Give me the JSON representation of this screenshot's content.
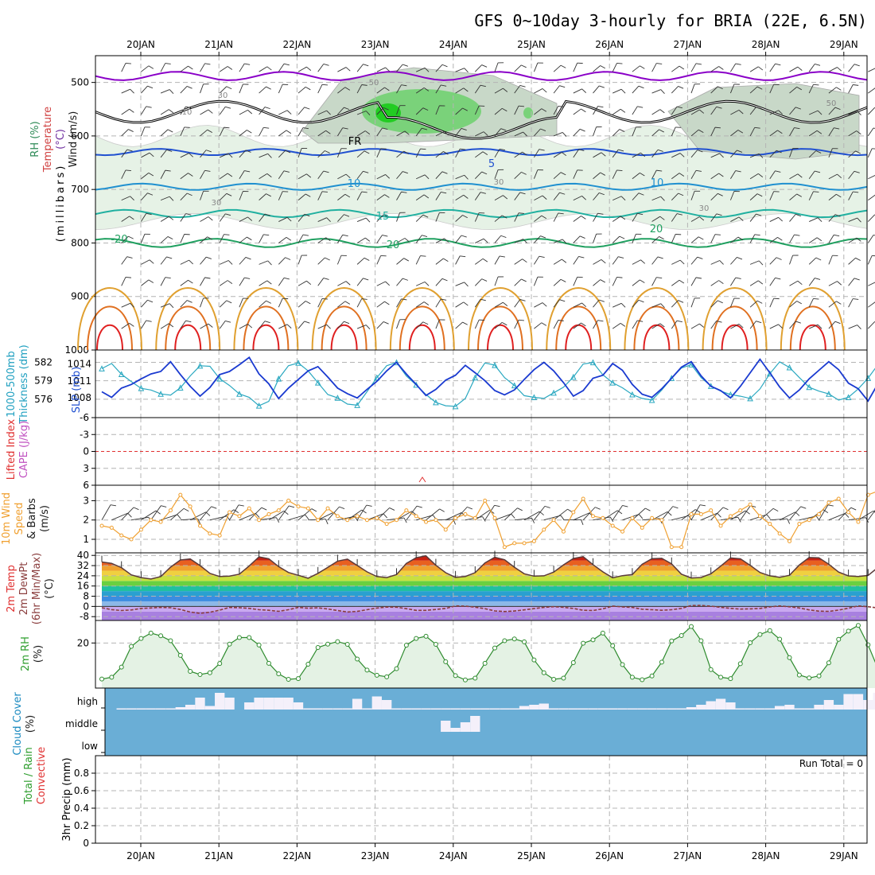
{
  "title": "GFS 0~10day 3-hourly for BRIA (22E, 6.5N)",
  "dates": [
    "20JAN",
    "21JAN",
    "22JAN",
    "23JAN",
    "24JAN",
    "25JAN",
    "26JAN",
    "27JAN",
    "28JAN",
    "29JAN"
  ],
  "colors": {
    "grid": "#b4b4b4",
    "rh_fill": "#e6f2e6",
    "dew": "#8a3d3d",
    "purple": "#8a00c8",
    "lifted": "#e03030",
    "cape": "#c050c0",
    "speed": "#f0a030",
    "cloud_bg": "#6aaed6",
    "cloud_fill": "#f4f0fa"
  },
  "chart_data": [
    {
      "name_hint": "upper-air",
      "type": "line",
      "ylabel_parts": [
        {
          "text": "RH (%)",
          "color": "#2e8b57"
        },
        {
          "text": "Temperature",
          "color": "#d04040"
        },
        {
          "text": "(°C)",
          "color": "#7030a0"
        },
        {
          "text": "Wind (m/s)",
          "color": "#1a1a1a"
        }
      ],
      "ylabel2": "(millibars)",
      "yticks": [
        500,
        600,
        700,
        800,
        900,
        1000
      ],
      "ylim": [
        450,
        1000
      ],
      "fr_label": "FR",
      "contour_labels": [
        {
          "text": "5",
          "color": "#2050d0"
        },
        {
          "text": "10",
          "color": "#2090d0"
        },
        {
          "text": "10",
          "color": "#2090d0"
        },
        {
          "text": "15",
          "color": "#20b0a0"
        },
        {
          "text": "20",
          "color": "#20a060"
        },
        {
          "text": "20",
          "color": "#20a060"
        },
        {
          "text": "-20",
          "color": "#20a060"
        },
        {
          "text": "50",
          "color": "#999999"
        },
        {
          "text": "50",
          "color": "#999999"
        },
        {
          "text": "30",
          "color": "#999999"
        },
        {
          "text": "10",
          "color": "#999999"
        },
        {
          "text": "30",
          "color": "#999999"
        },
        {
          "text": "30",
          "color": "#999999"
        },
        {
          "text": "30",
          "color": "#999999"
        }
      ]
    },
    {
      "name_hint": "thickness-slp",
      "type": "line",
      "ylabel_parts": [
        {
          "text": "1000-500mb",
          "color": "#20a0c0"
        },
        {
          "text": "Thickness (dm)",
          "color": "#20a0c0"
        }
      ],
      "ylabel_right": "SLP (mb)",
      "yticks_left": [
        576,
        579,
        582
      ],
      "yticks_right": [
        1008,
        1011,
        1014
      ],
      "series": [
        {
          "name": "1000-500mb Thickness",
          "values": [
            577.2,
            576.3,
            577.8,
            578.4,
            579.3,
            580.1,
            580.5,
            582.1,
            580.0,
            578.1,
            576.5,
            577.9,
            580.0,
            580.5,
            581.6,
            582.8,
            580.1,
            578.5,
            576.1,
            577.8,
            579.2,
            580.6,
            581.3,
            579.6,
            577.8,
            576.9,
            576.2,
            577.6,
            578.9,
            580.6,
            582.0,
            580.1,
            578.4,
            576.6,
            577.6,
            579.1,
            579.9,
            581.5,
            580.3,
            579.0,
            577.4,
            576.7,
            577.5,
            579.2,
            580.8,
            582.0,
            580.6,
            578.7,
            576.5,
            577.4,
            579.4,
            579.9,
            581.8,
            580.7,
            578.4,
            576.8,
            576.3,
            577.7,
            579.4,
            581.2,
            582.1,
            579.8,
            578.1,
            577.4,
            576.2,
            578.1,
            580.3,
            582.5,
            580.3,
            578.0,
            576.2,
            577.5,
            579.3,
            580.7,
            582.1,
            580.8,
            578.6,
            577.7,
            575.7,
            578.5,
            579.5,
            580.8
          ]
        },
        {
          "name": "SLP",
          "values": [
            1013.2,
            1014.1,
            1012.2,
            1010.9,
            1009.7,
            1009.4,
            1008.7,
            1008.5,
            1009.8,
            1011.9,
            1013.7,
            1013.6,
            1011.4,
            1010.2,
            1008.7,
            1008.1,
            1006.6,
            1007.4,
            1011.4,
            1013.7,
            1014.2,
            1012.8,
            1010.7,
            1008.6,
            1008.0,
            1006.9,
            1006.7,
            1009.1,
            1011.6,
            1013.7,
            1014.3,
            1011.9,
            1010.3,
            1008.6,
            1007.2,
            1006.6,
            1006.5,
            1007.9,
            1011.6,
            1014.2,
            1013.8,
            1011.6,
            1010.2,
            1008.4,
            1008.1,
            1007.9,
            1008.9,
            1009.9,
            1011.7,
            1014.0,
            1014.3,
            1012.1,
            1010.7,
            1009.8,
            1008.6,
            1007.9,
            1007.6,
            1009.4,
            1011.5,
            1013.3,
            1013.9,
            1011.6,
            1010.1,
            1009.2,
            1008.6,
            1008.3,
            1007.9,
            1009.6,
            1012.3,
            1014.4,
            1013.4,
            1011.6,
            1009.9,
            1009.2,
            1008.7,
            1007.6,
            1008.1,
            1009.6,
            1011.5,
            1013.9,
            1013.2,
            1011.4
          ]
        }
      ]
    },
    {
      "name_hint": "lifted-cape",
      "type": "line",
      "ylabel_parts": [
        {
          "text": "Lifted Index",
          "color": "#e03030"
        },
        {
          "text": "CAPE (J/kg)",
          "color": "#c050c0"
        }
      ],
      "yticks": [
        -6,
        -3,
        0,
        3,
        6
      ],
      "ylim": [
        -6,
        6
      ]
    },
    {
      "name_hint": "wind10m",
      "type": "line",
      "ylabel_parts": [
        {
          "text": "10m Wind",
          "color": "#f0a030"
        },
        {
          "text": "Speed",
          "color": "#f0a030"
        },
        {
          "text": "& Barbs",
          "color": "#1a1a1a"
        },
        {
          "text": "(m/s)",
          "color": "#1a1a1a"
        }
      ],
      "yticks": [
        1,
        2,
        3
      ],
      "ylim": [
        0.3,
        3.8
      ],
      "series": [
        {
          "name": "10m Wind Speed",
          "values": [
            1.7,
            1.6,
            1.2,
            1.0,
            1.5,
            2.0,
            1.9,
            2.5,
            3.3,
            2.7,
            1.7,
            1.3,
            1.2,
            2.4,
            2.2,
            2.6,
            2.0,
            2.3,
            2.5,
            3.0,
            2.7,
            2.6,
            2.0,
            2.6,
            2.2,
            2.0,
            2.2,
            2.0,
            2.1,
            1.8,
            2.0,
            2.5,
            2.2,
            1.9,
            2.0,
            1.5,
            2.1,
            2.3,
            2.1,
            3.0,
            2.1,
            0.6,
            0.8,
            0.8,
            0.9,
            1.5,
            2.0,
            1.4,
            2.4,
            3.1,
            2.2,
            2.1,
            1.7,
            1.4,
            2.1,
            1.6,
            2.1,
            2.0,
            0.6,
            0.6,
            2.3,
            2.3,
            2.5,
            1.7,
            2.2,
            2.5,
            2.8,
            2.2,
            1.8,
            1.3,
            0.9,
            1.8,
            2.0,
            2.3,
            2.9,
            3.1,
            2.4,
            1.9,
            3.3,
            3.5,
            1.9,
            2.4
          ]
        }
      ]
    },
    {
      "name_hint": "temp-dewpt",
      "type": "area",
      "ylabel_parts": [
        {
          "text": "2m Temp",
          "color": "#e03030"
        },
        {
          "text": "2m DewPt",
          "color": "#8a3d3d"
        },
        {
          "text": "(6hr Min/Max)",
          "color": "#8a3d3d"
        },
        {
          "text": "(°C)",
          "color": "#1a1a1a"
        }
      ],
      "yticks": [
        -8,
        0,
        8,
        16,
        24,
        32,
        40
      ],
      "ylim": [
        -11,
        42
      ],
      "series": [
        {
          "name": "2m Temp",
          "values": [
            34.8,
            33.8,
            30.4,
            24.7,
            22.6,
            21.5,
            23.4,
            30.8,
            36.4,
            37.2,
            32.0,
            25.9,
            23.4,
            23.8,
            25.3,
            31.8,
            38.8,
            37.4,
            31.2,
            26.6,
            24.4,
            22.1,
            25.9,
            30.6,
            35.5,
            37.1,
            32.1,
            27.1,
            23.4,
            22.6,
            24.9,
            33.7,
            38.2,
            39.6,
            32.3,
            26.4,
            22.8,
            23.5,
            26.5,
            34.1,
            38.6,
            36.6,
            30.7,
            25.6,
            23.7,
            24.0,
            26.9,
            32.6,
            37.6,
            39.0,
            32.8,
            27.1,
            22.5,
            24.1,
            25.0,
            33.1,
            37.4,
            37.7,
            33.4,
            25.3,
            22.3,
            22.7,
            25.6,
            31.6,
            38.0,
            37.3,
            32.2,
            26.6,
            24.0,
            22.8,
            24.4,
            32.5,
            38.3,
            38.1,
            33.1,
            26.9,
            23.9,
            23.4,
            24.3,
            30.5,
            36.5,
            37.4
          ]
        },
        {
          "name": "2m DewPt",
          "values": [
            -1.0,
            -2.5,
            -3.2,
            -2.8,
            -1.6,
            -1.2,
            -0.8,
            -1.0,
            -2.4,
            -4.4,
            -5.4,
            -4.6,
            -2.9,
            -0.8,
            -1.0,
            -1.5,
            -2.6,
            -3.0,
            -3.8,
            -2.6,
            -0.8,
            -1.4,
            -1.1,
            -2.0,
            -3.2,
            -4.4,
            -3.9,
            -2.6,
            -1.3,
            -0.5,
            -0.6,
            -1.8,
            -3.1,
            -3.1,
            -2.4,
            -1.6,
            0.4,
            0.2,
            -0.6,
            -1.8,
            -3.5,
            -4.0,
            -3.6,
            -2.7,
            -1.7,
            -0.8,
            -0.2,
            -0.7,
            -1.6,
            -3.0,
            -3.2,
            -1.9,
            0.3,
            -0.4,
            -0.8,
            -2.2,
            -2.6,
            -3.0,
            -2.6,
            -1.6,
            0.7,
            0.8,
            0.2,
            -0.7,
            -1.5,
            -2.1,
            -1.9,
            -1.6,
            -0.4,
            0.4,
            -0.3,
            -1.2,
            -2.7,
            -3.7,
            -3.9,
            -2.9,
            -1.4,
            0.4,
            -0.2,
            -1.2,
            -2.0,
            -3.3
          ]
        }
      ]
    },
    {
      "name_hint": "rh2m",
      "type": "area",
      "ylabel_parts": [
        {
          "text": "2m RH",
          "color": "#2e9e2e"
        },
        {
          "text": "(%)",
          "color": "#1a1a1a"
        }
      ],
      "yticks": [
        20
      ],
      "ylim": [
        0,
        30
      ],
      "series": [
        {
          "name": "2m RH",
          "values": [
            4.0,
            4.8,
            9.3,
            18.5,
            22.0,
            24.4,
            23.2,
            21.0,
            14.5,
            7.4,
            6.0,
            6.8,
            10.9,
            19.5,
            22.4,
            22.4,
            19.1,
            11.0,
            6.3,
            3.9,
            4.2,
            10.6,
            18.0,
            19.5,
            20.6,
            19.4,
            12.9,
            8.0,
            5.7,
            5.0,
            8.6,
            19.0,
            22.0,
            23.0,
            19.4,
            11.7,
            5.5,
            3.6,
            4.4,
            11.0,
            17.8,
            21.0,
            21.8,
            20.5,
            12.5,
            6.8,
            3.9,
            4.4,
            11.3,
            19.9,
            21.4,
            24.4,
            18.8,
            10.4,
            4.8,
            3.7,
            5.4,
            11.5,
            20.9,
            23.3,
            27.3,
            21.0,
            8.2,
            4.8,
            4.2,
            10.8,
            20.1,
            23.8,
            25.5,
            21.7,
            13.5,
            5.8,
            4.5,
            5.4,
            11.2,
            21.6,
            25.3,
            27.8,
            19.2,
            8.6,
            4.6,
            5.2
          ]
        }
      ]
    },
    {
      "name_hint": "cloud",
      "type": "area",
      "ylabel_parts": [
        {
          "text": "Cloud Cover",
          "color": "#1a8ac0"
        },
        {
          "text": "(%)",
          "color": "#1a1a1a"
        }
      ],
      "yticks": [
        "high",
        "middle",
        "low"
      ],
      "series": [
        {
          "name": "high",
          "values": [
            0,
            0,
            1,
            1,
            1,
            1,
            1,
            1,
            2,
            4,
            10,
            3,
            14,
            10,
            0,
            6,
            10,
            10,
            10,
            10,
            6,
            1,
            1,
            1,
            1,
            1,
            9,
            1,
            11,
            8,
            1,
            1,
            1,
            1,
            1,
            1,
            1,
            1,
            1,
            1,
            1,
            1,
            1,
            3,
            4,
            5,
            1,
            1,
            1,
            1,
            1,
            1,
            1,
            1,
            1,
            1,
            1,
            1,
            1,
            1,
            2,
            4,
            7,
            9,
            6,
            1,
            1,
            1,
            1,
            3,
            4,
            1,
            1,
            4,
            8,
            4,
            13,
            13,
            8,
            14,
            14,
            8
          ]
        },
        {
          "name": "middle",
          "values": [
            0,
            0,
            0,
            0,
            0,
            0,
            0,
            0,
            0,
            0,
            0,
            0,
            0,
            0,
            0,
            0,
            0,
            0,
            0,
            0,
            0,
            0,
            0,
            0,
            0,
            0,
            0,
            0,
            0,
            0,
            0,
            0,
            0,
            0,
            0,
            14,
            5,
            12,
            20,
            0,
            0,
            0,
            0,
            0,
            0,
            0,
            0,
            0,
            0,
            0,
            0,
            0,
            0,
            0,
            0,
            0,
            0,
            0,
            0,
            0,
            0,
            0,
            0,
            0,
            0,
            0,
            0,
            0,
            0,
            0,
            0,
            0,
            0,
            0,
            0,
            0,
            0,
            0,
            0,
            0,
            0,
            0
          ]
        }
      ]
    },
    {
      "name_hint": "precip",
      "type": "bar",
      "ylabel_parts": [
        {
          "text": "Total / Rain",
          "color": "#2e9e2e"
        },
        {
          "text": "Convective",
          "color": "#e03030"
        },
        {
          "text": "3hr Precip (mm)",
          "color": "#1a1a1a"
        }
      ],
      "yticks": [
        0,
        0.2,
        0.4,
        0.6,
        0.8
      ],
      "ylim": [
        0,
        1
      ],
      "run_total": "Run Total = 0"
    }
  ]
}
